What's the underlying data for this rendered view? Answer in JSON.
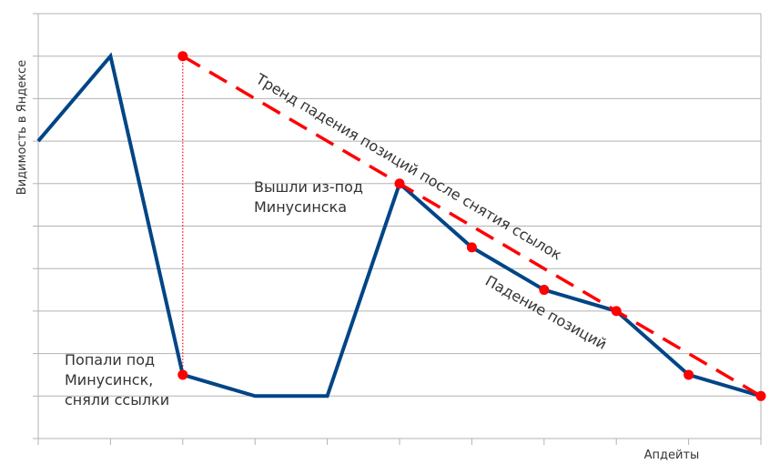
{
  "chart_data": {
    "type": "line",
    "y_label": "Видимость в Яндексе",
    "x_label": "Апдейты",
    "x": [
      0,
      1,
      2,
      3,
      4,
      5,
      6,
      7,
      8,
      9,
      10
    ],
    "xlim": [
      0,
      10
    ],
    "xticks": [
      0,
      1,
      2,
      3,
      4,
      5,
      6,
      7,
      8,
      9,
      10
    ],
    "ylim": [
      0,
      10
    ],
    "yticks": [
      0,
      1,
      2,
      3,
      4,
      5,
      6,
      7,
      8,
      9,
      10
    ],
    "grid": true,
    "series": [
      {
        "color": "#004586",
        "values": [
          7,
          9,
          1.5,
          1,
          1,
          6,
          4.5,
          3.5,
          3,
          1.5,
          1
        ]
      },
      {
        "color": "#ff0000",
        "values": [
          null,
          null,
          1.5,
          null,
          null,
          6,
          4.5,
          3.5,
          3,
          1.5,
          1
        ]
      }
    ],
    "trend": {
      "color": "#ff0000",
      "x": [
        2,
        10
      ],
      "values": [
        9,
        1
      ]
    },
    "annotations": {
      "trend": "Тренд падения позиций после снятия ссылок",
      "decline": "Падение позиций",
      "exit": [
        "Вышли из-под",
        "Минусинска"
      ],
      "hit": [
        "Попали под",
        "Минусинск,",
        "сняли ссылки"
      ]
    }
  }
}
